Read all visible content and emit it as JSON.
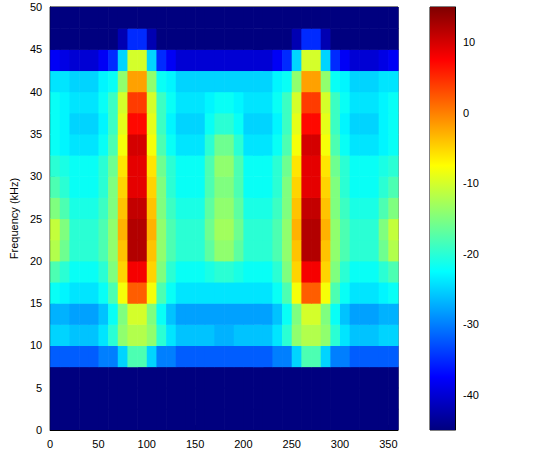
{
  "chart_data": {
    "type": "heatmap",
    "y_label": "Frequency (kHz)",
    "xlim": [
      0,
      360
    ],
    "xticks": [
      0,
      50,
      100,
      150,
      200,
      250,
      300,
      350
    ],
    "ylim": [
      0,
      50
    ],
    "yticks": [
      0,
      5,
      10,
      15,
      20,
      25,
      30,
      35,
      40,
      45,
      50
    ],
    "x_edges": [
      0,
      10,
      20,
      30,
      40,
      50,
      60,
      70,
      80,
      90,
      100,
      110,
      120,
      130,
      140,
      150,
      160,
      170,
      180,
      190,
      200,
      210,
      220,
      230,
      240,
      250,
      260,
      270,
      280,
      290,
      300,
      310,
      320,
      330,
      340,
      350,
      360
    ],
    "y_edges": [
      0,
      2.5,
      5,
      7.5,
      10,
      12.5,
      15,
      17.5,
      20,
      22.5,
      25,
      27.5,
      30,
      32.5,
      35,
      37.5,
      40,
      42.5,
      45,
      47.5,
      50
    ],
    "cells": [
      [
        -45,
        -45,
        -45,
        -45,
        -45,
        -45,
        -45,
        -45,
        -45,
        -45,
        -45,
        -45,
        -45,
        -45,
        -45,
        -45,
        -45,
        -45,
        -45,
        -45,
        -45,
        -45,
        -45,
        -45,
        -45,
        -45,
        -45,
        -45,
        -45,
        -45,
        -45,
        -45,
        -45,
        -45,
        -45,
        -45
      ],
      [
        -45,
        -45,
        -45,
        -45,
        -45,
        -45,
        -45,
        -45,
        -45,
        -45,
        -45,
        -45,
        -45,
        -45,
        -45,
        -45,
        -45,
        -45,
        -45,
        -45,
        -45,
        -45,
        -45,
        -45,
        -45,
        -45,
        -45,
        -45,
        -45,
        -45,
        -45,
        -45,
        -45,
        -45,
        -45,
        -45
      ],
      [
        -45,
        -45,
        -45,
        -45,
        -45,
        -45,
        -45,
        -45,
        -45,
        -45,
        -45,
        -45,
        -45,
        -45,
        -45,
        -45,
        -45,
        -45,
        -45,
        -45,
        -45,
        -45,
        -45,
        -45,
        -45,
        -45,
        -45,
        -45,
        -45,
        -45,
        -45,
        -45,
        -45,
        -45,
        -45,
        -45
      ],
      [
        -32,
        -32,
        -32,
        -32,
        -32,
        -30,
        -30,
        -25,
        -18,
        -18,
        -25,
        -30,
        -30,
        -32,
        -32,
        -32,
        -32,
        -32,
        -32,
        -32,
        -32,
        -32,
        -32,
        -30,
        -30,
        -25,
        -18,
        -18,
        -25,
        -30,
        -30,
        -32,
        -32,
        -32,
        -32,
        -32
      ],
      [
        -25,
        -25,
        -26,
        -26,
        -26,
        -24,
        -20,
        -14,
        -12,
        -12,
        -14,
        -20,
        -24,
        -26,
        -26,
        -26,
        -26,
        -27,
        -27,
        -26,
        -26,
        -26,
        -26,
        -24,
        -20,
        -14,
        -12,
        -12,
        -14,
        -20,
        -24,
        -26,
        -26,
        -26,
        -25,
        -25
      ],
      [
        -27,
        -27,
        -28,
        -28,
        -28,
        -26,
        -22,
        -15,
        -10,
        -10,
        -15,
        -22,
        -26,
        -28,
        -28,
        -28,
        -28,
        -28,
        -28,
        -28,
        -28,
        -28,
        -28,
        -26,
        -22,
        -15,
        -10,
        -10,
        -15,
        -22,
        -26,
        -28,
        -28,
        -28,
        -27,
        -27
      ],
      [
        -22,
        -23,
        -24,
        -24,
        -24,
        -22,
        -18,
        -8,
        2,
        2,
        -8,
        -18,
        -22,
        -24,
        -24,
        -24,
        -24,
        -24,
        -24,
        -24,
        -24,
        -24,
        -24,
        -22,
        -18,
        -8,
        2,
        2,
        -8,
        -18,
        -22,
        -24,
        -24,
        -24,
        -23,
        -22
      ],
      [
        -18,
        -20,
        -22,
        -22,
        -22,
        -20,
        -15,
        -5,
        8,
        8,
        -5,
        -15,
        -20,
        -22,
        -22,
        -22,
        -21,
        -20,
        -20,
        -21,
        -22,
        -22,
        -22,
        -20,
        -15,
        -5,
        8,
        8,
        -5,
        -15,
        -20,
        -22,
        -22,
        -22,
        -20,
        -18
      ],
      [
        -12,
        -16,
        -20,
        -20,
        -20,
        -18,
        -14,
        -4,
        12,
        12,
        -4,
        -14,
        -18,
        -20,
        -20,
        -20,
        -17,
        -14,
        -14,
        -17,
        -20,
        -20,
        -20,
        -18,
        -14,
        -4,
        12,
        12,
        -4,
        -14,
        -18,
        -20,
        -20,
        -20,
        -16,
        -12
      ],
      [
        -11,
        -15,
        -20,
        -20,
        -20,
        -18,
        -14,
        -3,
        12,
        12,
        -3,
        -14,
        -18,
        -20,
        -20,
        -20,
        -16,
        -13,
        -13,
        -16,
        -20,
        -20,
        -20,
        -18,
        -14,
        -3,
        12,
        12,
        -3,
        -14,
        -18,
        -20,
        -20,
        -20,
        -15,
        -11
      ],
      [
        -15,
        -18,
        -21,
        -21,
        -21,
        -19,
        -15,
        -4,
        11,
        11,
        -4,
        -15,
        -19,
        -21,
        -21,
        -21,
        -17,
        -14,
        -14,
        -17,
        -21,
        -21,
        -21,
        -19,
        -15,
        -4,
        11,
        11,
        -4,
        -15,
        -19,
        -21,
        -21,
        -21,
        -18,
        -15
      ],
      [
        -18,
        -20,
        -22,
        -22,
        -22,
        -20,
        -15,
        -5,
        9,
        9,
        -5,
        -15,
        -20,
        -22,
        -22,
        -22,
        -18,
        -15,
        -15,
        -18,
        -22,
        -22,
        -22,
        -20,
        -15,
        -5,
        9,
        9,
        -5,
        -15,
        -20,
        -22,
        -22,
        -22,
        -20,
        -18
      ],
      [
        -20,
        -21,
        -22,
        -22,
        -22,
        -20,
        -16,
        -6,
        9,
        9,
        -6,
        -16,
        -20,
        -22,
        -22,
        -22,
        -18,
        -14,
        -14,
        -18,
        -22,
        -22,
        -22,
        -20,
        -16,
        -6,
        9,
        9,
        -6,
        -16,
        -20,
        -22,
        -22,
        -22,
        -21,
        -20
      ],
      [
        -22,
        -23,
        -24,
        -24,
        -24,
        -22,
        -18,
        -8,
        10,
        10,
        -8,
        -18,
        -22,
        -24,
        -24,
        -24,
        -20,
        -16,
        -16,
        -20,
        -24,
        -24,
        -24,
        -22,
        -18,
        -8,
        10,
        10,
        -8,
        -18,
        -22,
        -24,
        -24,
        -24,
        -23,
        -22
      ],
      [
        -22,
        -23,
        -25,
        -25,
        -25,
        -23,
        -19,
        -9,
        7,
        7,
        -9,
        -19,
        -23,
        -25,
        -25,
        -25,
        -22,
        -20,
        -20,
        -22,
        -25,
        -25,
        -25,
        -23,
        -19,
        -9,
        7,
        7,
        -9,
        -19,
        -23,
        -25,
        -25,
        -25,
        -23,
        -22
      ],
      [
        -22,
        -23,
        -24,
        -24,
        -24,
        -22,
        -19,
        -10,
        4,
        4,
        -10,
        -19,
        -22,
        -24,
        -24,
        -24,
        -23,
        -22,
        -22,
        -23,
        -24,
        -24,
        -24,
        -22,
        -19,
        -10,
        4,
        4,
        -10,
        -19,
        -22,
        -24,
        -24,
        -24,
        -23,
        -22
      ],
      [
        -24,
        -24,
        -25,
        -25,
        -25,
        -23,
        -22,
        -14,
        -2,
        -2,
        -14,
        -22,
        -23,
        -25,
        -25,
        -25,
        -25,
        -25,
        -25,
        -25,
        -25,
        -25,
        -25,
        -23,
        -22,
        -14,
        -2,
        -2,
        -14,
        -22,
        -23,
        -25,
        -25,
        -25,
        -24,
        -24
      ],
      [
        -38,
        -39,
        -40,
        -40,
        -40,
        -38,
        -35,
        -25,
        -10,
        -10,
        -25,
        -35,
        -38,
        -40,
        -40,
        -40,
        -40,
        -40,
        -40,
        -40,
        -40,
        -40,
        -40,
        -38,
        -35,
        -25,
        -10,
        -10,
        -25,
        -35,
        -38,
        -40,
        -40,
        -40,
        -39,
        -38
      ],
      [
        -45,
        -45,
        -45,
        -45,
        -45,
        -45,
        -45,
        -42,
        -35,
        -35,
        -42,
        -45,
        -45,
        -45,
        -45,
        -45,
        -45,
        -45,
        -45,
        -45,
        -45,
        -45,
        -45,
        -45,
        -45,
        -42,
        -35,
        -35,
        -42,
        -45,
        -45,
        -45,
        -45,
        -45,
        -45,
        -45
      ],
      [
        -45,
        -45,
        -45,
        -45,
        -45,
        -45,
        -45,
        -45,
        -45,
        -45,
        -45,
        -45,
        -45,
        -45,
        -45,
        -45,
        -45,
        -45,
        -45,
        -45,
        -45,
        -45,
        -45,
        -45,
        -45,
        -45,
        -45,
        -45,
        -45,
        -45,
        -45,
        -45,
        -45,
        -45,
        -45,
        -45
      ]
    ],
    "colorbar": {
      "range": [
        -45,
        15
      ],
      "ticks": [
        -40,
        -30,
        -20,
        -10,
        0,
        10
      ]
    }
  }
}
